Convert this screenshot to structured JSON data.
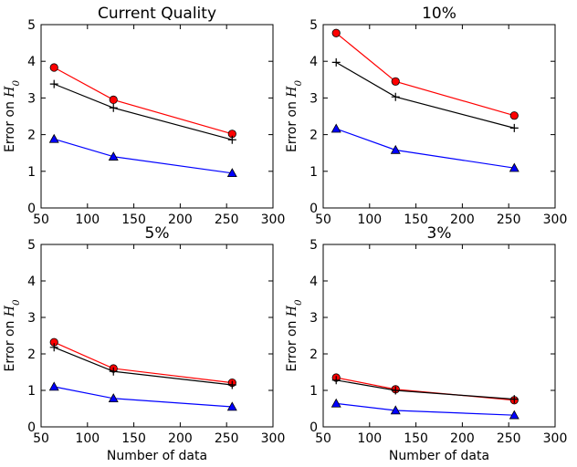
{
  "chart_data": [
    {
      "type": "line",
      "title": "Current Quality",
      "xlabel": "",
      "ylabel": "Error on H0",
      "xlim": [
        50,
        300
      ],
      "ylim": [
        0,
        5
      ],
      "xticks": [
        50,
        100,
        150,
        200,
        250,
        300
      ],
      "yticks": [
        0,
        1,
        2,
        3,
        4,
        5
      ],
      "x": [
        64,
        128,
        256
      ],
      "series": [
        {
          "values": [
            3.83,
            2.95,
            2.02
          ],
          "color": "#ff0000",
          "marker": "circle"
        },
        {
          "values": [
            3.38,
            2.73,
            1.86
          ],
          "color": "#000000",
          "marker": "plus"
        },
        {
          "values": [
            1.88,
            1.4,
            0.95
          ],
          "color": "#0000ff",
          "marker": "triangle"
        }
      ]
    },
    {
      "type": "line",
      "title": "10%",
      "xlabel": "",
      "ylabel": "Error on H0",
      "xlim": [
        50,
        300
      ],
      "ylim": [
        0,
        5
      ],
      "xticks": [
        50,
        100,
        150,
        200,
        250,
        300
      ],
      "yticks": [
        0,
        1,
        2,
        3,
        4,
        5
      ],
      "x": [
        64,
        128,
        256
      ],
      "series": [
        {
          "values": [
            4.77,
            3.45,
            2.52
          ],
          "color": "#ff0000",
          "marker": "circle"
        },
        {
          "values": [
            3.97,
            3.03,
            2.18
          ],
          "color": "#000000",
          "marker": "plus"
        },
        {
          "values": [
            2.16,
            1.58,
            1.09
          ],
          "color": "#0000ff",
          "marker": "triangle"
        }
      ]
    },
    {
      "type": "line",
      "title": "5%",
      "xlabel": "Number of data",
      "ylabel": "Error on H0",
      "xlim": [
        50,
        300
      ],
      "ylim": [
        0,
        5
      ],
      "xticks": [
        50,
        100,
        150,
        200,
        250,
        300
      ],
      "yticks": [
        0,
        1,
        2,
        3,
        4,
        5
      ],
      "x": [
        64,
        128,
        256
      ],
      "series": [
        {
          "values": [
            2.32,
            1.6,
            1.21
          ],
          "color": "#ff0000",
          "marker": "circle"
        },
        {
          "values": [
            2.18,
            1.52,
            1.15
          ],
          "color": "#000000",
          "marker": "plus"
        },
        {
          "values": [
            1.1,
            0.78,
            0.55
          ],
          "color": "#0000ff",
          "marker": "triangle"
        }
      ]
    },
    {
      "type": "line",
      "title": "3%",
      "xlabel": "Number of data",
      "ylabel": "Error on H0",
      "xlim": [
        50,
        300
      ],
      "ylim": [
        0,
        5
      ],
      "xticks": [
        50,
        100,
        150,
        200,
        250,
        300
      ],
      "yticks": [
        0,
        1,
        2,
        3,
        4,
        5
      ],
      "x": [
        64,
        128,
        256
      ],
      "series": [
        {
          "values": [
            1.35,
            1.03,
            0.73
          ],
          "color": "#ff0000",
          "marker": "circle"
        },
        {
          "values": [
            1.28,
            1.0,
            0.76
          ],
          "color": "#000000",
          "marker": "plus"
        },
        {
          "values": [
            0.64,
            0.45,
            0.32
          ],
          "color": "#0000ff",
          "marker": "triangle"
        }
      ]
    }
  ]
}
